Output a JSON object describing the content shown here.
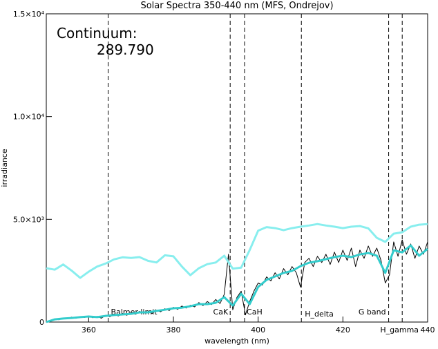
{
  "chart_data": {
    "type": "line",
    "title": "Solar Spectra 350-440 nm (MFS, Ondrejov)",
    "xlabel": "wavelength (nm)",
    "ylabel": "irradiance",
    "annotations": [
      "Continuum:",
      "289.790"
    ],
    "xlim": [
      350,
      440
    ],
    "xticks": [
      360,
      380,
      400,
      420,
      440
    ],
    "ylim": [
      0,
      15000
    ],
    "yticks": [
      0,
      {
        "value": 5000,
        "label": "5.0×10³"
      },
      {
        "value": 10000,
        "label": "1.0×10⁴"
      },
      {
        "value": 15000,
        "label": "1.5×10⁴"
      }
    ],
    "lines": [
      {
        "x": 364.6,
        "label": "Balmer limit"
      },
      {
        "x": 393.4,
        "label": "CaK"
      },
      {
        "x": 396.8,
        "label": "CaH"
      },
      {
        "x": 410.2,
        "label": "H_delta"
      },
      {
        "x": 430.8,
        "label": "G band"
      },
      {
        "x": 434.0,
        "label": "H_gamma"
      }
    ],
    "series": [
      {
        "color": "#000000",
        "x": [
          350,
          351,
          352,
          353,
          354,
          355,
          356,
          357,
          358,
          359,
          360,
          361,
          362,
          363,
          364,
          365,
          366,
          367,
          368,
          369,
          370,
          371,
          372,
          373,
          374,
          375,
          376,
          377,
          378,
          379,
          380,
          381,
          382,
          383,
          384,
          385,
          386,
          387,
          388,
          389,
          390,
          391,
          392,
          393,
          394,
          395,
          396,
          397,
          398,
          399,
          400,
          401,
          402,
          403,
          404,
          405,
          406,
          407,
          408,
          409,
          410,
          411,
          412,
          413,
          414,
          415,
          416,
          417,
          418,
          419,
          420,
          421,
          422,
          423,
          424,
          425,
          426,
          427,
          428,
          429,
          430,
          431,
          432,
          433,
          434,
          435,
          436,
          437,
          438,
          439,
          440
        ],
        "values": [
          0,
          90,
          150,
          110,
          200,
          160,
          240,
          180,
          260,
          220,
          300,
          210,
          280,
          190,
          330,
          260,
          380,
          300,
          420,
          330,
          460,
          380,
          520,
          430,
          500,
          420,
          580,
          500,
          650,
          560,
          720,
          620,
          780,
          680,
          820,
          740,
          950,
          800,
          1000,
          850,
          1100,
          900,
          1350,
          3300,
          600,
          1200,
          1500,
          350,
          1000,
          1500,
          1900,
          1800,
          2200,
          2000,
          2400,
          2100,
          2600,
          2300,
          2700,
          2400,
          1700,
          2900,
          3100,
          2700,
          3200,
          2900,
          3300,
          2800,
          3400,
          2900,
          3500,
          3000,
          3600,
          2700,
          3500,
          3100,
          3700,
          3200,
          3600,
          3000,
          1900,
          2300,
          3900,
          3200,
          4000,
          3300,
          3800,
          3100,
          3700,
          3300,
          3900
        ]
      },
      {
        "color": "#33cccc",
        "x": [
          350,
          352,
          354,
          356,
          358,
          360,
          362,
          364,
          366,
          368,
          370,
          372,
          374,
          376,
          378,
          380,
          382,
          384,
          386,
          388,
          390,
          392,
          394,
          396,
          398,
          400,
          402,
          404,
          406,
          408,
          410,
          412,
          414,
          416,
          418,
          420,
          422,
          424,
          426,
          428,
          430,
          432,
          434,
          436,
          438,
          440
        ],
        "values": [
          0,
          130,
          170,
          200,
          240,
          270,
          240,
          300,
          340,
          370,
          400,
          470,
          470,
          540,
          600,
          670,
          700,
          770,
          870,
          870,
          940,
          1210,
          800,
          1380,
          870,
          1710,
          2050,
          2220,
          2390,
          2490,
          2720,
          2890,
          2960,
          3060,
          3160,
          3230,
          3160,
          3290,
          3360,
          3230,
          2390,
          3490,
          3390,
          3730,
          3230,
          3560
        ]
      },
      {
        "color": "#88eeee",
        "x": [
          350,
          352,
          354,
          356,
          358,
          360,
          362,
          364,
          366,
          368,
          370,
          372,
          374,
          376,
          378,
          380,
          382,
          384,
          386,
          388,
          390,
          392,
          394,
          396,
          398,
          400,
          402,
          404,
          406,
          408,
          410,
          412,
          414,
          416,
          418,
          420,
          422,
          424,
          426,
          428,
          430,
          432,
          434,
          436,
          438,
          440
        ],
        "values": [
          2620,
          2550,
          2800,
          2500,
          2150,
          2450,
          2700,
          2850,
          3050,
          3150,
          3120,
          3160,
          2980,
          2900,
          3250,
          3200,
          2700,
          2280,
          2620,
          2820,
          2900,
          3230,
          2600,
          2650,
          3500,
          4450,
          4620,
          4570,
          4470,
          4570,
          4640,
          4700,
          4770,
          4700,
          4640,
          4570,
          4640,
          4670,
          4560,
          4100,
          3900,
          4300,
          4370,
          4640,
          4740,
          4770
        ]
      }
    ]
  }
}
